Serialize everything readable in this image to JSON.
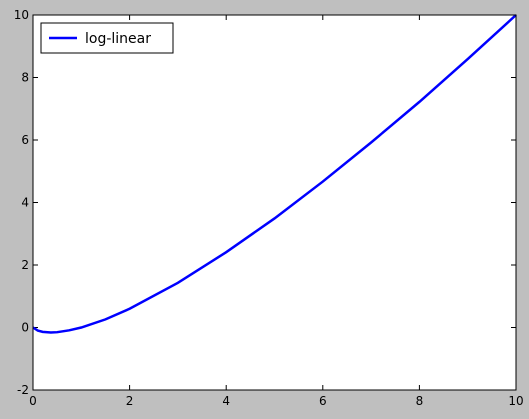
{
  "chart_data": {
    "type": "line",
    "x": [
      0,
      0.1,
      0.2,
      0.37,
      0.5,
      0.75,
      1,
      1.5,
      2,
      3,
      4,
      5,
      6,
      7,
      8,
      9,
      10
    ],
    "series": [
      {
        "name": "log-linear",
        "color": "#0000ff",
        "values": [
          0,
          -0.1,
          -0.14,
          -0.16,
          -0.15,
          -0.09,
          0,
          0.26,
          0.6,
          1.43,
          2.41,
          3.49,
          4.67,
          5.92,
          7.22,
          8.59,
          10
        ]
      }
    ],
    "xlim": [
      0,
      10
    ],
    "xticks": [
      0,
      2,
      4,
      6,
      8,
      10
    ],
    "ylim": [
      -2,
      10
    ],
    "yticks": [
      -2,
      0,
      2,
      4,
      6,
      8,
      10
    ],
    "legend": "upper left",
    "grid": false
  }
}
